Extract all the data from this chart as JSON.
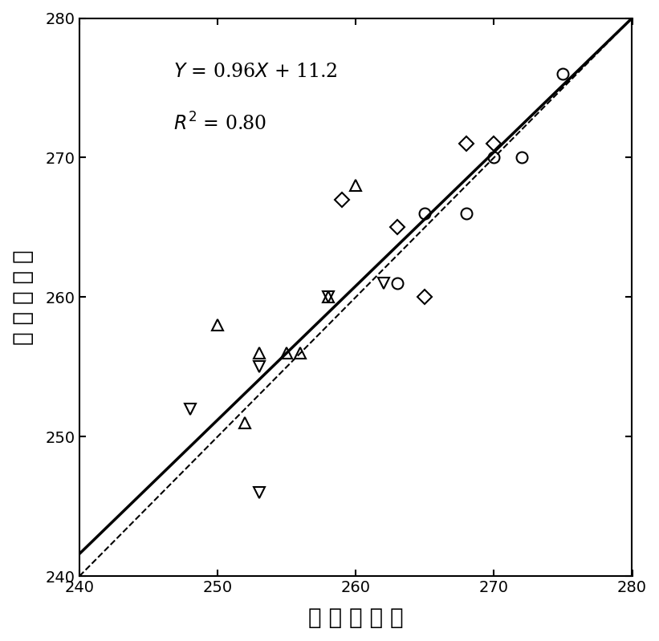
{
  "title_line1": "Y = 0.96X + 11.2",
  "title_line2": "R² = 0.80",
  "xlabel": "实 测 成 熟 期",
  "ylabel": "模 拟 成 熟 期",
  "xlim": [
    240,
    280
  ],
  "ylim": [
    240,
    280
  ],
  "xticks": [
    240,
    250,
    260,
    270,
    280
  ],
  "yticks": [
    240,
    250,
    260,
    270,
    280
  ],
  "regression_slope": 0.96,
  "regression_intercept": 11.2,
  "circle_points": {
    "x": [
      263,
      265,
      268,
      270,
      272,
      275
    ],
    "y": [
      261,
      266,
      266,
      270,
      270,
      276
    ]
  },
  "diamond_points": {
    "x": [
      259,
      263,
      265,
      268,
      270
    ],
    "y": [
      267,
      265,
      260,
      271,
      271
    ]
  },
  "up_triangle_points": {
    "x": [
      250,
      252,
      253,
      255,
      256,
      258,
      260
    ],
    "y": [
      258,
      251,
      256,
      256,
      256,
      260,
      268
    ]
  },
  "down_triangle_points": {
    "x": [
      248,
      253,
      253,
      258,
      262
    ],
    "y": [
      252,
      255,
      246,
      260,
      261
    ]
  },
  "marker_size": 10,
  "marker_linewidth": 1.5,
  "regression_color": "#000000",
  "onetoone_color": "#000000",
  "background_color": "#ffffff",
  "tick_fontsize": 14,
  "label_fontsize": 20,
  "annotation_fontsize": 17
}
